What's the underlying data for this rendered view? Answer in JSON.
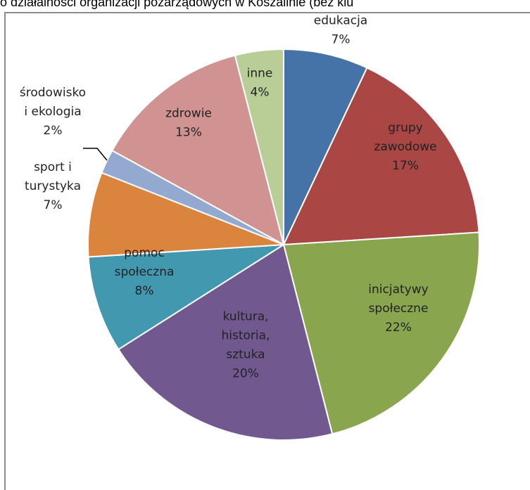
{
  "page": {
    "title": "o działalności organizacji pozarządowych w Koszalinie (bez klu"
  },
  "chart_data": {
    "type": "pie",
    "slices": [
      {
        "label_lines": [
          "edukacja"
        ],
        "value_label": "7%",
        "value": 7,
        "color": "#4572a7"
      },
      {
        "label_lines": [
          "grupy",
          "zawodowe"
        ],
        "value_label": "17%",
        "value": 17,
        "color": "#aa4643"
      },
      {
        "label_lines": [
          "inicjatywy",
          "społeczne"
        ],
        "value_label": "22%",
        "value": 22,
        "color": "#89a54e"
      },
      {
        "label_lines": [
          "kultura,",
          "historia,",
          "sztuka"
        ],
        "value_label": "20%",
        "value": 20,
        "color": "#71588f"
      },
      {
        "label_lines": [
          "pomoc",
          "społeczna"
        ],
        "value_label": "8%",
        "value": 8,
        "color": "#4198af"
      },
      {
        "label_lines": [
          "sport i",
          "turystyka"
        ],
        "value_label": "7%",
        "value": 7,
        "color": "#db843d"
      },
      {
        "label_lines": [
          "środowisko",
          "i ekologia"
        ],
        "value_label": "2%",
        "value": 2,
        "color": "#93a9cf"
      },
      {
        "label_lines": [
          "zdrowie"
        ],
        "value_label": "13%",
        "value": 13,
        "color": "#d19392"
      },
      {
        "label_lines": [
          "inne"
        ],
        "value_label": "4%",
        "value": 4,
        "color": "#b9cd96"
      }
    ]
  }
}
